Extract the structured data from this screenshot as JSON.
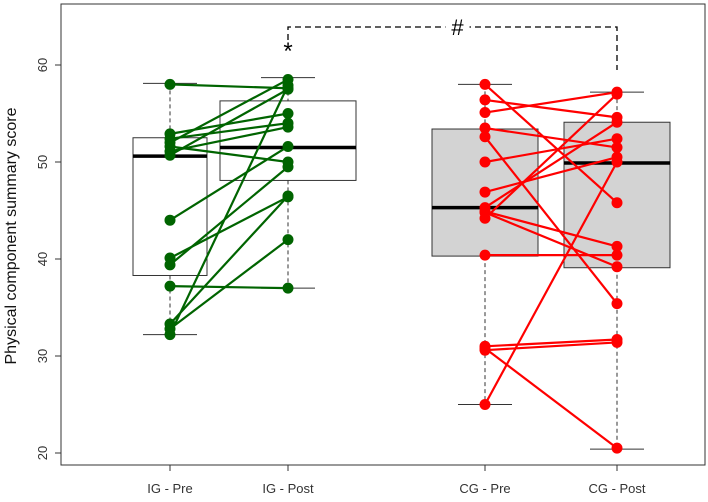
{
  "chart_data": {
    "type": "box-paired",
    "ylabel": "Physical component summary score",
    "ylim": [
      19,
      65
    ],
    "yticks": [
      20,
      30,
      40,
      50,
      60
    ],
    "categories": [
      "IG - Pre",
      "IG - Post",
      "CG - Pre",
      "CG - Post"
    ],
    "boxes": [
      {
        "group": "IG - Pre",
        "min": 32.2,
        "q1": 38.3,
        "median": 50.6,
        "q3": 52.5,
        "max": 58.1,
        "fill": "#ffffff"
      },
      {
        "group": "IG - Post",
        "min": 37.0,
        "q1": 48.1,
        "median": 51.5,
        "q3": 56.3,
        "max": 58.7,
        "fill": "#ffffff"
      },
      {
        "group": "CG - Pre",
        "min": 25.0,
        "q1": 40.3,
        "median": 45.3,
        "q3": 53.4,
        "max": 58.0,
        "fill": "#d3d3d3"
      },
      {
        "group": "CG - Post",
        "min": 20.4,
        "q1": 39.1,
        "median": 49.9,
        "q3": 54.1,
        "max": 57.2,
        "fill": "#d3d3d3"
      }
    ],
    "series": [
      {
        "group": "IG",
        "color": "#006400",
        "pairs": [
          [
            58.0,
            57.6
          ],
          [
            52.9,
            55.0
          ],
          [
            52.4,
            54.0
          ],
          [
            52.0,
            58.5
          ],
          [
            51.6,
            50.0
          ],
          [
            51.1,
            53.6
          ],
          [
            50.7,
            57.5
          ],
          [
            44.0,
            51.6
          ],
          [
            40.1,
            46.4
          ],
          [
            39.4,
            49.5
          ],
          [
            37.2,
            37.0
          ],
          [
            33.3,
            46.5
          ],
          [
            32.8,
            42.0
          ],
          [
            32.2,
            57.9
          ]
        ]
      },
      {
        "group": "CG",
        "color": "#ff0000",
        "pairs": [
          [
            58.0,
            45.8
          ],
          [
            56.4,
            54.6
          ],
          [
            55.1,
            57.2
          ],
          [
            53.5,
            51.5
          ],
          [
            52.6,
            35.4
          ],
          [
            50.0,
            52.4
          ],
          [
            46.9,
            50.5
          ],
          [
            45.3,
            54.1
          ],
          [
            44.9,
            41.3
          ],
          [
            44.2,
            57.0
          ],
          [
            40.4,
            40.4
          ],
          [
            31.0,
            31.7
          ],
          [
            30.6,
            31.4
          ],
          [
            25.0,
            50.0
          ],
          [
            30.8,
            20.5
          ],
          [
            44.8,
            39.2
          ]
        ]
      }
    ],
    "annotations": [
      {
        "text": "*",
        "near": "IG - Post"
      },
      {
        "text": "#",
        "between": [
          "IG - Post",
          "CG - Post"
        ],
        "style": "dashed bracket"
      }
    ]
  }
}
